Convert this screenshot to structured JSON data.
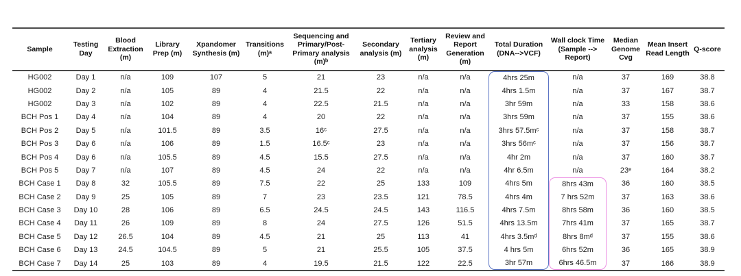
{
  "table": {
    "columns": [
      {
        "id": "sample",
        "label": "Sample"
      },
      {
        "id": "testing_day",
        "label": "Testing Day"
      },
      {
        "id": "blood_extraction",
        "label": "Blood Extraction (m)"
      },
      {
        "id": "library_prep",
        "label": "Library Prep (m)"
      },
      {
        "id": "xpandomer_synthesis",
        "label": "Xpandomer Synthesis (m)"
      },
      {
        "id": "transitions",
        "label": "Transitions (m)ᵃ"
      },
      {
        "id": "sequencing_primary",
        "label": "Sequencing and Primary/Post-Primary analysis (m)ᵇ"
      },
      {
        "id": "secondary_analysis",
        "label": "Secondary analysis (m)"
      },
      {
        "id": "tertiary_analysis",
        "label": "Tertiary analysis (m)"
      },
      {
        "id": "review_report",
        "label": "Review and Report Generation (m)"
      },
      {
        "id": "total_duration",
        "label": "Total Duration (DNA-->VCF)"
      },
      {
        "id": "wall_clock",
        "label": "Wall clock Time (Sample --> Report)"
      },
      {
        "id": "median_genome_cvg",
        "label": "Median Genome Cvg"
      },
      {
        "id": "mean_insert_read_length",
        "label": "Mean Insert Read Length"
      },
      {
        "id": "q_score",
        "label": "Q-score"
      }
    ],
    "rows": [
      [
        "HG002",
        "Day 1",
        "n/a",
        "109",
        "107",
        "5",
        "21",
        "23",
        "n/a",
        "n/a",
        "4hrs 25m",
        "n/a",
        "37",
        "169",
        "38.8"
      ],
      [
        "HG002",
        "Day 2",
        "n/a",
        "105",
        "89",
        "4",
        "21.5",
        "22",
        "n/a",
        "n/a",
        "4hrs 1.5m",
        "n/a",
        "37",
        "167",
        "38.7"
      ],
      [
        "HG002",
        "Day 3",
        "n/a",
        "102",
        "89",
        "4",
        "22.5",
        "21.5",
        "n/a",
        "n/a",
        "3hr 59m",
        "n/a",
        "33",
        "158",
        "38.6"
      ],
      [
        "BCH Pos 1",
        "Day 4",
        "n/a",
        "104",
        "89",
        "4",
        "20",
        "22",
        "n/a",
        "n/a",
        "3hrs 59m",
        "n/a",
        "37",
        "155",
        "38.6"
      ],
      [
        "BCH Pos 2",
        "Day 5",
        "n/a",
        "101.5",
        "89",
        "3.5",
        "16ᶜ",
        "27.5",
        "n/a",
        "n/a",
        "3hrs 57.5mᶜ",
        "n/a",
        "37",
        "158",
        "38.7"
      ],
      [
        "BCH Pos 3",
        "Day 6",
        "n/a",
        "106",
        "89",
        "1.5",
        "16.5ᶜ",
        "23",
        "n/a",
        "n/a",
        "3hrs 56mᶜ",
        "n/a",
        "37",
        "156",
        "38.7"
      ],
      [
        "BCH Pos 4",
        "Day 6",
        "n/a",
        "105.5",
        "89",
        "4.5",
        "15.5",
        "27.5",
        "n/a",
        "n/a",
        "4hr 2m",
        "n/a",
        "37",
        "160",
        "38.7"
      ],
      [
        "BCH Pos 5",
        "Day 7",
        "n/a",
        "107",
        "89",
        "4.5",
        "24",
        "22",
        "n/a",
        "n/a",
        "4hr 6.5m",
        "n/a",
        "23ᵉ",
        "164",
        "38.2"
      ],
      [
        "BCH Case 1",
        "Day 8",
        "32",
        "105.5",
        "89",
        "7.5",
        "22",
        "25",
        "133",
        "109",
        "4hrs 5m",
        "8hrs 43m",
        "36",
        "160",
        "38.5"
      ],
      [
        "BCH Case 2",
        "Day 9",
        "25",
        "105",
        "89",
        "7",
        "23",
        "23.5",
        "121",
        "78.5",
        "4hrs 4m",
        "7 hrs 52m",
        "37",
        "163",
        "38.6"
      ],
      [
        "BCH Case 3",
        "Day 10",
        "28",
        "106",
        "89",
        "6.5",
        "24.5",
        "24.5",
        "143",
        "116.5",
        "4hrs 7.5m",
        "8hrs 58m",
        "36",
        "160",
        "38.5"
      ],
      [
        "BCH Case 4",
        "Day 11",
        "26",
        "109",
        "89",
        "8",
        "24",
        "27.5",
        "126",
        "51.5",
        "4hrs 13.5m",
        "7hrs 41m",
        "37",
        "165",
        "38.7"
      ],
      [
        "BCH Case 5",
        "Day 12",
        "26.5",
        "104",
        "89",
        "4.5",
        "21",
        "25",
        "113",
        "41",
        "4hrs 3.5mᵈ",
        "8hrs 8mᵈ",
        "37",
        "155",
        "38.6"
      ],
      [
        "BCH Case 6",
        "Day 13",
        "24.5",
        "104.5",
        "89",
        "5",
        "21",
        "25.5",
        "105",
        "37.5",
        "4 hrs 5m",
        "6hrs 52m",
        "36",
        "165",
        "38.9"
      ],
      [
        "BCH Case 7",
        "Day 14",
        "25",
        "103",
        "89",
        "4",
        "19.5",
        "21.5",
        "122",
        "22.5",
        "3hr 57m",
        "6hrs 46.5m",
        "37",
        "166",
        "38.9"
      ]
    ],
    "highlights": [
      {
        "name": "total-duration-highlight-box",
        "column_id": "total_duration",
        "first_row": 0,
        "last_row": 14,
        "color": "#5b74c4"
      },
      {
        "name": "wall-clock-highlight-box",
        "column_id": "wall_clock",
        "first_row": 8,
        "last_row": 14,
        "color": "#ec8fe3"
      }
    ]
  }
}
